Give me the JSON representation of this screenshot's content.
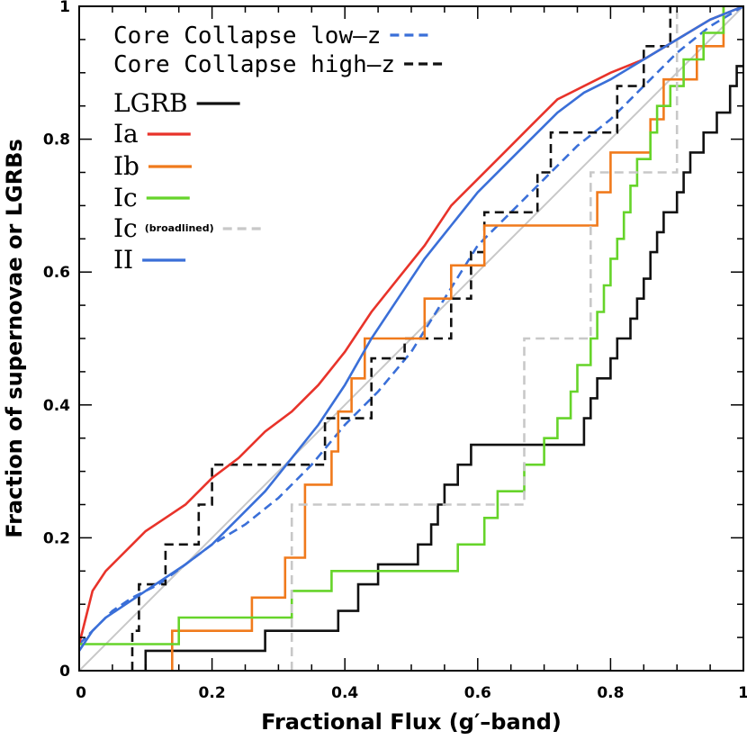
{
  "chart_data": {
    "type": "line",
    "subtype": "cumulative-step",
    "xlabel": "Fractional Flux (g′–band)",
    "ylabel": "Fraction of supernovae or LGRBs",
    "xlim": [
      0,
      1
    ],
    "ylim": [
      0,
      1
    ],
    "x_ticks": [
      0,
      0.2,
      0.4,
      0.6,
      0.8,
      1
    ],
    "y_ticks": [
      0,
      0.2,
      0.4,
      0.6,
      0.8,
      1
    ],
    "x_tick_labels": [
      "0",
      "0.2",
      "0.4",
      "0.6",
      "0.8",
      "1"
    ],
    "y_tick_labels": [
      "0",
      "0.2",
      "0.4",
      "0.6",
      "0.8",
      "1"
    ],
    "grid": false,
    "legend_position": "top-left",
    "reference_line": {
      "name": "one-to-one",
      "color": "#c8c8c8",
      "points": [
        [
          0,
          0
        ],
        [
          1,
          1
        ]
      ]
    },
    "series": [
      {
        "name": "Core Collapse low–z",
        "legend_prefix": "Core Collapse low–z",
        "legend_note": "",
        "color": "#3a6fd8",
        "dash": "dashed",
        "points": [
          [
            0,
            0.04
          ],
          [
            0.02,
            0.06
          ],
          [
            0.05,
            0.09
          ],
          [
            0.08,
            0.11
          ],
          [
            0.12,
            0.13
          ],
          [
            0.16,
            0.16
          ],
          [
            0.2,
            0.19
          ],
          [
            0.25,
            0.22
          ],
          [
            0.3,
            0.26
          ],
          [
            0.35,
            0.31
          ],
          [
            0.4,
            0.37
          ],
          [
            0.45,
            0.42
          ],
          [
            0.5,
            0.48
          ],
          [
            0.55,
            0.56
          ],
          [
            0.6,
            0.64
          ],
          [
            0.65,
            0.69
          ],
          [
            0.7,
            0.74
          ],
          [
            0.75,
            0.79
          ],
          [
            0.8,
            0.83
          ],
          [
            0.85,
            0.88
          ],
          [
            0.9,
            0.93
          ],
          [
            0.95,
            0.97
          ],
          [
            1,
            1
          ]
        ]
      },
      {
        "name": "Core Collapse high–z",
        "legend_prefix": "Core Collapse high–z",
        "legend_note": "",
        "color": "#111111",
        "dash": "dashed",
        "step": true,
        "points": [
          [
            0.08,
            0
          ],
          [
            0.08,
            0.06
          ],
          [
            0.09,
            0.06
          ],
          [
            0.09,
            0.09
          ],
          [
            0.09,
            0.13
          ],
          [
            0.13,
            0.13
          ],
          [
            0.13,
            0.16
          ],
          [
            0.13,
            0.19
          ],
          [
            0.18,
            0.19
          ],
          [
            0.18,
            0.25
          ],
          [
            0.2,
            0.25
          ],
          [
            0.2,
            0.31
          ],
          [
            0.37,
            0.31
          ],
          [
            0.37,
            0.34
          ],
          [
            0.37,
            0.38
          ],
          [
            0.44,
            0.38
          ],
          [
            0.44,
            0.47
          ],
          [
            0.49,
            0.47
          ],
          [
            0.49,
            0.5
          ],
          [
            0.56,
            0.5
          ],
          [
            0.56,
            0.56
          ],
          [
            0.59,
            0.56
          ],
          [
            0.59,
            0.63
          ],
          [
            0.61,
            0.63
          ],
          [
            0.61,
            0.69
          ],
          [
            0.69,
            0.69
          ],
          [
            0.69,
            0.75
          ],
          [
            0.71,
            0.75
          ],
          [
            0.71,
            0.81
          ],
          [
            0.81,
            0.81
          ],
          [
            0.81,
            0.88
          ],
          [
            0.85,
            0.88
          ],
          [
            0.85,
            0.94
          ],
          [
            0.89,
            0.94
          ],
          [
            0.89,
            1
          ]
        ]
      },
      {
        "name": "LGRB",
        "legend_prefix": "LGRB",
        "legend_note": "",
        "color": "#111111",
        "dash": "solid",
        "step": true,
        "points": [
          [
            0.1,
            0
          ],
          [
            0.1,
            0.03
          ],
          [
            0.28,
            0.03
          ],
          [
            0.28,
            0.06
          ],
          [
            0.39,
            0.06
          ],
          [
            0.39,
            0.09
          ],
          [
            0.42,
            0.09
          ],
          [
            0.42,
            0.13
          ],
          [
            0.45,
            0.13
          ],
          [
            0.45,
            0.16
          ],
          [
            0.51,
            0.16
          ],
          [
            0.51,
            0.19
          ],
          [
            0.53,
            0.19
          ],
          [
            0.53,
            0.22
          ],
          [
            0.54,
            0.22
          ],
          [
            0.54,
            0.25
          ],
          [
            0.55,
            0.25
          ],
          [
            0.55,
            0.28
          ],
          [
            0.57,
            0.28
          ],
          [
            0.57,
            0.31
          ],
          [
            0.59,
            0.31
          ],
          [
            0.59,
            0.34
          ],
          [
            0.76,
            0.34
          ],
          [
            0.76,
            0.38
          ],
          [
            0.77,
            0.38
          ],
          [
            0.77,
            0.41
          ],
          [
            0.78,
            0.41
          ],
          [
            0.78,
            0.44
          ],
          [
            0.8,
            0.44
          ],
          [
            0.8,
            0.47
          ],
          [
            0.81,
            0.47
          ],
          [
            0.81,
            0.5
          ],
          [
            0.83,
            0.5
          ],
          [
            0.83,
            0.53
          ],
          [
            0.84,
            0.53
          ],
          [
            0.84,
            0.56
          ],
          [
            0.85,
            0.56
          ],
          [
            0.85,
            0.59
          ],
          [
            0.86,
            0.59
          ],
          [
            0.86,
            0.63
          ],
          [
            0.87,
            0.63
          ],
          [
            0.87,
            0.66
          ],
          [
            0.88,
            0.66
          ],
          [
            0.88,
            0.69
          ],
          [
            0.9,
            0.69
          ],
          [
            0.9,
            0.72
          ],
          [
            0.91,
            0.72
          ],
          [
            0.91,
            0.75
          ],
          [
            0.92,
            0.75
          ],
          [
            0.92,
            0.78
          ],
          [
            0.94,
            0.78
          ],
          [
            0.94,
            0.81
          ],
          [
            0.96,
            0.81
          ],
          [
            0.96,
            0.84
          ],
          [
            0.98,
            0.84
          ],
          [
            0.98,
            0.88
          ],
          [
            0.99,
            0.88
          ],
          [
            0.99,
            0.91
          ],
          [
            1,
            0.91
          ]
        ]
      },
      {
        "name": "Ia",
        "legend_prefix": "Ia",
        "legend_note": "",
        "color": "#e8332a",
        "dash": "solid",
        "points": [
          [
            0,
            0.04
          ],
          [
            0.01,
            0.08
          ],
          [
            0.02,
            0.12
          ],
          [
            0.04,
            0.15
          ],
          [
            0.06,
            0.17
          ],
          [
            0.08,
            0.19
          ],
          [
            0.1,
            0.21
          ],
          [
            0.13,
            0.23
          ],
          [
            0.16,
            0.25
          ],
          [
            0.2,
            0.29
          ],
          [
            0.24,
            0.32
          ],
          [
            0.28,
            0.36
          ],
          [
            0.32,
            0.39
          ],
          [
            0.36,
            0.43
          ],
          [
            0.4,
            0.48
          ],
          [
            0.44,
            0.54
          ],
          [
            0.48,
            0.59
          ],
          [
            0.52,
            0.64
          ],
          [
            0.56,
            0.7
          ],
          [
            0.6,
            0.74
          ],
          [
            0.64,
            0.78
          ],
          [
            0.68,
            0.82
          ],
          [
            0.72,
            0.86
          ],
          [
            0.76,
            0.88
          ],
          [
            0.8,
            0.9
          ],
          [
            0.85,
            0.92
          ],
          [
            0.9,
            0.95
          ],
          [
            0.95,
            0.98
          ],
          [
            1,
            1
          ]
        ]
      },
      {
        "name": "Ib",
        "legend_prefix": "Ib",
        "legend_note": "",
        "color": "#f07a1c",
        "dash": "solid",
        "step": true,
        "points": [
          [
            0.14,
            0
          ],
          [
            0.14,
            0.06
          ],
          [
            0.26,
            0.06
          ],
          [
            0.26,
            0.11
          ],
          [
            0.31,
            0.11
          ],
          [
            0.31,
            0.17
          ],
          [
            0.34,
            0.17
          ],
          [
            0.34,
            0.28
          ],
          [
            0.38,
            0.28
          ],
          [
            0.38,
            0.33
          ],
          [
            0.39,
            0.33
          ],
          [
            0.39,
            0.39
          ],
          [
            0.41,
            0.39
          ],
          [
            0.41,
            0.44
          ],
          [
            0.43,
            0.44
          ],
          [
            0.43,
            0.5
          ],
          [
            0.52,
            0.5
          ],
          [
            0.52,
            0.56
          ],
          [
            0.56,
            0.56
          ],
          [
            0.56,
            0.61
          ],
          [
            0.61,
            0.61
          ],
          [
            0.61,
            0.67
          ],
          [
            0.78,
            0.67
          ],
          [
            0.78,
            0.72
          ],
          [
            0.8,
            0.72
          ],
          [
            0.8,
            0.78
          ],
          [
            0.86,
            0.78
          ],
          [
            0.86,
            0.83
          ],
          [
            0.88,
            0.83
          ],
          [
            0.88,
            0.89
          ],
          [
            0.93,
            0.89
          ],
          [
            0.93,
            0.94
          ],
          [
            0.97,
            0.94
          ],
          [
            0.97,
            1
          ]
        ]
      },
      {
        "name": "Ic",
        "legend_prefix": "Ic",
        "legend_note": "",
        "color": "#66d42a",
        "dash": "solid",
        "step": true,
        "points": [
          [
            0,
            0.04
          ],
          [
            0.15,
            0.04
          ],
          [
            0.15,
            0.08
          ],
          [
            0.32,
            0.08
          ],
          [
            0.32,
            0.12
          ],
          [
            0.38,
            0.12
          ],
          [
            0.38,
            0.15
          ],
          [
            0.57,
            0.15
          ],
          [
            0.57,
            0.19
          ],
          [
            0.61,
            0.19
          ],
          [
            0.61,
            0.23
          ],
          [
            0.63,
            0.23
          ],
          [
            0.63,
            0.27
          ],
          [
            0.67,
            0.27
          ],
          [
            0.67,
            0.31
          ],
          [
            0.7,
            0.31
          ],
          [
            0.7,
            0.35
          ],
          [
            0.72,
            0.35
          ],
          [
            0.72,
            0.38
          ],
          [
            0.74,
            0.38
          ],
          [
            0.74,
            0.42
          ],
          [
            0.75,
            0.42
          ],
          [
            0.75,
            0.46
          ],
          [
            0.77,
            0.46
          ],
          [
            0.77,
            0.5
          ],
          [
            0.78,
            0.5
          ],
          [
            0.78,
            0.54
          ],
          [
            0.79,
            0.54
          ],
          [
            0.79,
            0.58
          ],
          [
            0.8,
            0.58
          ],
          [
            0.8,
            0.62
          ],
          [
            0.81,
            0.62
          ],
          [
            0.81,
            0.65
          ],
          [
            0.82,
            0.65
          ],
          [
            0.82,
            0.69
          ],
          [
            0.83,
            0.69
          ],
          [
            0.83,
            0.73
          ],
          [
            0.84,
            0.73
          ],
          [
            0.84,
            0.77
          ],
          [
            0.86,
            0.77
          ],
          [
            0.86,
            0.81
          ],
          [
            0.87,
            0.81
          ],
          [
            0.87,
            0.85
          ],
          [
            0.89,
            0.85
          ],
          [
            0.89,
            0.88
          ],
          [
            0.91,
            0.88
          ],
          [
            0.91,
            0.92
          ],
          [
            0.94,
            0.92
          ],
          [
            0.94,
            0.96
          ],
          [
            0.97,
            0.96
          ],
          [
            0.97,
            1
          ]
        ]
      },
      {
        "name": "Ic (broadlined)",
        "legend_prefix": "Ic",
        "legend_note": "(broadlined)",
        "color": "#c8c8c8",
        "dash": "dashed",
        "step": true,
        "points": [
          [
            0.32,
            0
          ],
          [
            0.32,
            0.25
          ],
          [
            0.67,
            0.25
          ],
          [
            0.67,
            0.5
          ],
          [
            0.77,
            0.5
          ],
          [
            0.77,
            0.75
          ],
          [
            0.9,
            0.75
          ],
          [
            0.9,
            1
          ]
        ]
      },
      {
        "name": "II",
        "legend_prefix": "II",
        "legend_note": "",
        "color": "#3a6fd8",
        "dash": "solid",
        "points": [
          [
            0,
            0.03
          ],
          [
            0.02,
            0.06
          ],
          [
            0.04,
            0.08
          ],
          [
            0.07,
            0.1
          ],
          [
            0.1,
            0.12
          ],
          [
            0.13,
            0.14
          ],
          [
            0.16,
            0.16
          ],
          [
            0.2,
            0.19
          ],
          [
            0.24,
            0.23
          ],
          [
            0.28,
            0.27
          ],
          [
            0.32,
            0.32
          ],
          [
            0.36,
            0.37
          ],
          [
            0.4,
            0.43
          ],
          [
            0.44,
            0.5
          ],
          [
            0.48,
            0.56
          ],
          [
            0.52,
            0.62
          ],
          [
            0.56,
            0.67
          ],
          [
            0.6,
            0.72
          ],
          [
            0.64,
            0.76
          ],
          [
            0.68,
            0.8
          ],
          [
            0.72,
            0.84
          ],
          [
            0.76,
            0.87
          ],
          [
            0.8,
            0.89
          ],
          [
            0.85,
            0.92
          ],
          [
            0.9,
            0.95
          ],
          [
            0.95,
            0.98
          ],
          [
            1,
            1
          ]
        ]
      }
    ]
  }
}
